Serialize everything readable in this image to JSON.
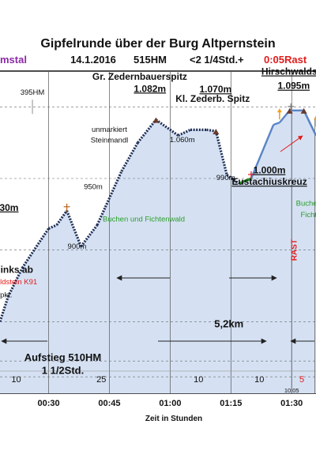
{
  "chart_data": {
    "type": "area",
    "title": "Gipfelrunde über der Burg Altpernstein",
    "subtitle": {
      "region": "mstal",
      "date": "14.1.2016",
      "elevation_gain": "515HM",
      "duration": "<2 1/4Std.+",
      "rest": "0:05Rast"
    },
    "xlabel": "Zeit in Stunden",
    "ylabel": "",
    "x_ticks": [
      "00:30",
      "00:45",
      "01:00",
      "01:15",
      "01:30"
    ],
    "x_range_minutes": [
      18,
      96
    ],
    "y_range_m": [
      700,
      1150
    ],
    "segment_minutes": [
      {
        "label": "10",
        "at": 22
      },
      {
        "label": "25",
        "at": 43
      },
      {
        "label": "10",
        "at": 67
      },
      {
        "label": "10",
        "at": 82
      },
      {
        "label": "5",
        "at": 92.5,
        "color": "#e21b1b"
      }
    ],
    "marker_labels": [
      {
        "text": "10:05",
        "at": 90
      }
    ],
    "profile": [
      {
        "t": 18,
        "elev": 800
      },
      {
        "t": 20,
        "elev": 835
      },
      {
        "t": 23.5,
        "elev": 875
      },
      {
        "t": 27,
        "elev": 905
      },
      {
        "t": 30,
        "elev": 930
      },
      {
        "t": 32,
        "elev": 935
      },
      {
        "t": 34.5,
        "elev": 955
      },
      {
        "t": 38,
        "elev": 905
      },
      {
        "t": 42,
        "elev": 935
      },
      {
        "t": 44,
        "elev": 960
      },
      {
        "t": 48,
        "elev": 1010
      },
      {
        "t": 52,
        "elev": 1050
      },
      {
        "t": 56.5,
        "elev": 1082
      },
      {
        "t": 62,
        "elev": 1060
      },
      {
        "t": 65,
        "elev": 1068
      },
      {
        "t": 69,
        "elev": 1068
      },
      {
        "t": 71.3,
        "elev": 1066
      },
      {
        "t": 74,
        "elev": 1005
      },
      {
        "t": 77,
        "elev": 993
      },
      {
        "t": 80,
        "elev": 1000
      },
      {
        "t": 85.5,
        "elev": 1075
      },
      {
        "t": 87,
        "elev": 1078
      },
      {
        "t": 89.5,
        "elev": 1095
      },
      {
        "t": 93,
        "elev": 1095
      },
      {
        "t": 96,
        "elev": 1060
      }
    ],
    "annotations": [
      {
        "text": "Gr. Zedernbauerspitz",
        "t": 52.5,
        "elev": 1138,
        "bold": true,
        "underline": false
      },
      {
        "text": "1.082m",
        "t": 55,
        "elev": 1121,
        "bold": true,
        "underline": true
      },
      {
        "text": "395HM",
        "t": 26,
        "elev": 1117,
        "bold": false
      },
      {
        "text": "1.070m",
        "t": 71.2,
        "elev": 1120,
        "bold": true,
        "underline": true
      },
      {
        "text": "Kl. Zederb. Spitz",
        "t": 70.5,
        "elev": 1107,
        "bold": true
      },
      {
        "text": "Hirschwaldstein",
        "t": 91.5,
        "elev": 1145,
        "bold": true,
        "underline": true
      },
      {
        "text": "1.095m",
        "t": 90.5,
        "elev": 1125,
        "bold": true,
        "underline": true
      },
      {
        "text": "unmarkiert",
        "t": 45,
        "elev": 1065,
        "bold": false
      },
      {
        "text": "Steinmandl",
        "t": 45,
        "elev": 1050,
        "bold": false
      },
      {
        "text": "1.060m",
        "t": 63,
        "elev": 1051,
        "bold": false
      },
      {
        "text": "990m",
        "t": 73.7,
        "elev": 998,
        "bold": false
      },
      {
        "text": "1.000m",
        "t": 84.5,
        "elev": 1007,
        "bold": true,
        "underline": true
      },
      {
        "text": "Eustachiuskreuz",
        "t": 84.5,
        "elev": 991,
        "bold": true,
        "underline": true
      },
      {
        "text": "950m",
        "t": 41,
        "elev": 985,
        "bold": false
      },
      {
        "text": "el ~930m",
        "t": 17.6,
        "elev": 955,
        "bold": true,
        "underline": true
      },
      {
        "text": "Buchen und Fichtenwald",
        "t": 53.5,
        "elev": 940,
        "bold": false,
        "color": "#2a9d2a"
      },
      {
        "text": "Buchen",
        "t": 94.2,
        "elev": 962,
        "bold": false,
        "color": "#2a9d2a"
      },
      {
        "text": "Ficht",
        "t": 94.2,
        "elev": 946,
        "bold": false,
        "color": "#2a9d2a"
      },
      {
        "text": "900m",
        "t": 37,
        "elev": 902,
        "bold": false
      },
      {
        "text": "850m links ab",
        "t": 18.5,
        "elev": 868,
        "bold": true
      },
      {
        "text": "Hirschwaldstein K91",
        "t": 18.8,
        "elev": 852,
        "bold": false,
        "color": "#e21b1b"
      },
      {
        "text": "Tiefpkt.",
        "t": 18,
        "elev": 834,
        "bold": false
      },
      {
        "text": "5,2km",
        "t": 74.5,
        "elev": 792,
        "bold": true
      },
      {
        "text": "Aufstieg 510HM",
        "t": 33.5,
        "elev": 745,
        "bold": true
      },
      {
        "text": "1 1/2Std.",
        "t": 33.5,
        "elev": 727,
        "bold": true
      }
    ],
    "rotated_label": {
      "text": "RAST",
      "t": 91.2,
      "elev": 900,
      "color": "#e21b1b"
    },
    "grid": true,
    "legend": "none"
  }
}
